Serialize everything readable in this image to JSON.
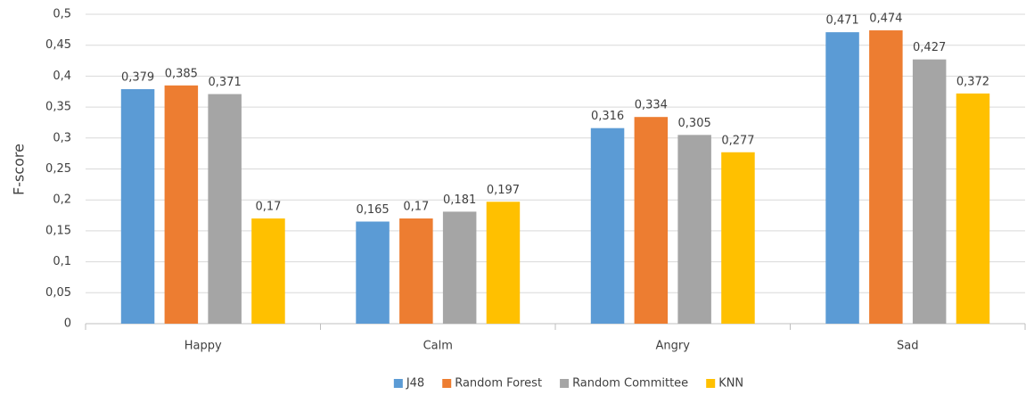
{
  "chart_data": {
    "type": "bar",
    "categories": [
      "Happy",
      "Calm",
      "Angry",
      "Sad"
    ],
    "series": [
      {
        "name": "J48",
        "color": "#5b9bd5",
        "values": [
          0.379,
          0.165,
          0.316,
          0.471
        ],
        "value_labels": [
          "0,379",
          "0,165",
          "0,316",
          "0,471"
        ]
      },
      {
        "name": "Random Forest",
        "color": "#ed7d31",
        "values": [
          0.385,
          0.17,
          0.334,
          0.474
        ],
        "value_labels": [
          "0,385",
          "0,17",
          "0,334",
          "0,474"
        ]
      },
      {
        "name": "Random Committee",
        "color": "#a5a5a5",
        "values": [
          0.371,
          0.181,
          0.305,
          0.427
        ],
        "value_labels": [
          "0,371",
          "0,181",
          "0,305",
          "0,427"
        ]
      },
      {
        "name": "KNN",
        "color": "#ffc000",
        "values": [
          0.17,
          0.197,
          0.277,
          0.372
        ],
        "value_labels": [
          "0,17",
          "0,197",
          "0,277",
          "0,372"
        ]
      }
    ],
    "y_label": "F-score",
    "ylim": [
      0,
      0.5
    ],
    "yticks": [
      0,
      {
        "value": 0.05,
        "label": "0,05"
      },
      {
        "value": 0.1,
        "label": "0,1"
      },
      {
        "value": 0.15,
        "label": "0,15"
      },
      {
        "value": 0.2,
        "label": "0,2"
      },
      {
        "value": 0.25,
        "label": "0,25"
      },
      {
        "value": 0.3,
        "label": "0,3"
      },
      {
        "value": 0.35,
        "label": "0,35"
      },
      {
        "value": 0.4,
        "label": "0,4"
      },
      {
        "value": 0.45,
        "label": "0,45"
      },
      {
        "value": 0.5,
        "label": "0,5"
      }
    ],
    "grid": true,
    "legend": "bottom"
  }
}
